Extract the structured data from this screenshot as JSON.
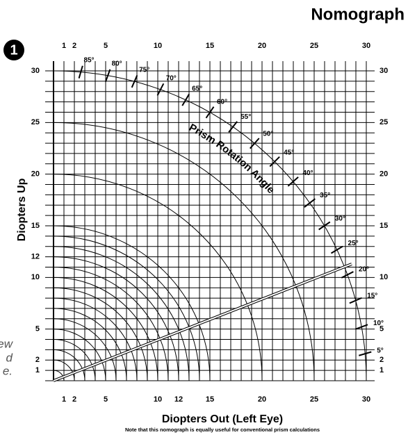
{
  "chart_data": {
    "type": "nomograph",
    "title": "Nomograph",
    "badge": "1",
    "xlabel": "Diopters Out (Left Eye)",
    "ylabel": "Diopters Up",
    "note": "Note that this nomograph is equally useful for conventional prism calculations",
    "curve_label": "Prism Rotation Angle",
    "side_fragments": [
      "ew",
      "d",
      "e."
    ],
    "xlim": [
      0,
      30
    ],
    "ylim": [
      0,
      30
    ],
    "xticks": [
      1,
      2,
      5,
      10,
      12,
      15,
      20,
      25,
      30
    ],
    "xticks_top": [
      1,
      2,
      5,
      10,
      15,
      20,
      25,
      30
    ],
    "yticks": [
      1,
      2,
      5,
      10,
      12,
      15,
      20,
      25,
      30
    ],
    "yticks_right": [
      1,
      2,
      5,
      10,
      15,
      20,
      25,
      30
    ],
    "grid_lines": [
      0,
      1,
      2,
      3,
      4,
      5,
      6,
      7,
      8,
      9,
      10,
      11,
      12,
      13,
      14,
      15,
      16,
      17,
      18,
      19,
      20,
      21,
      22,
      23,
      24,
      25,
      26,
      27,
      28,
      29,
      30
    ],
    "arc_radii": [
      1,
      2,
      3,
      4,
      5,
      6,
      7,
      8,
      9,
      10,
      11,
      12,
      13,
      14,
      15,
      20,
      25,
      30
    ],
    "angle_radius": 30,
    "angles": [
      {
        "value": 5,
        "label": "5°"
      },
      {
        "value": 10,
        "label": "10°"
      },
      {
        "value": 15,
        "label": "15°"
      },
      {
        "value": 20,
        "label": "20°"
      },
      {
        "value": 25,
        "label": "25°"
      },
      {
        "value": 30,
        "label": "30°"
      },
      {
        "value": 35,
        "label": "35°"
      },
      {
        "value": 40,
        "label": "40°"
      },
      {
        "value": 45,
        "label": "45°"
      },
      {
        "value": 50,
        "label": "50°"
      },
      {
        "value": 55,
        "label": "55°"
      },
      {
        "value": 60,
        "label": "60°"
      },
      {
        "value": 65,
        "label": "65°"
      },
      {
        "value": 70,
        "label": "70°"
      },
      {
        "value": 75,
        "label": "75°"
      },
      {
        "value": 80,
        "label": "80°"
      },
      {
        "value": 85,
        "label": "85°"
      }
    ],
    "example_point": {
      "x": 28.6,
      "y": 11.3
    }
  }
}
